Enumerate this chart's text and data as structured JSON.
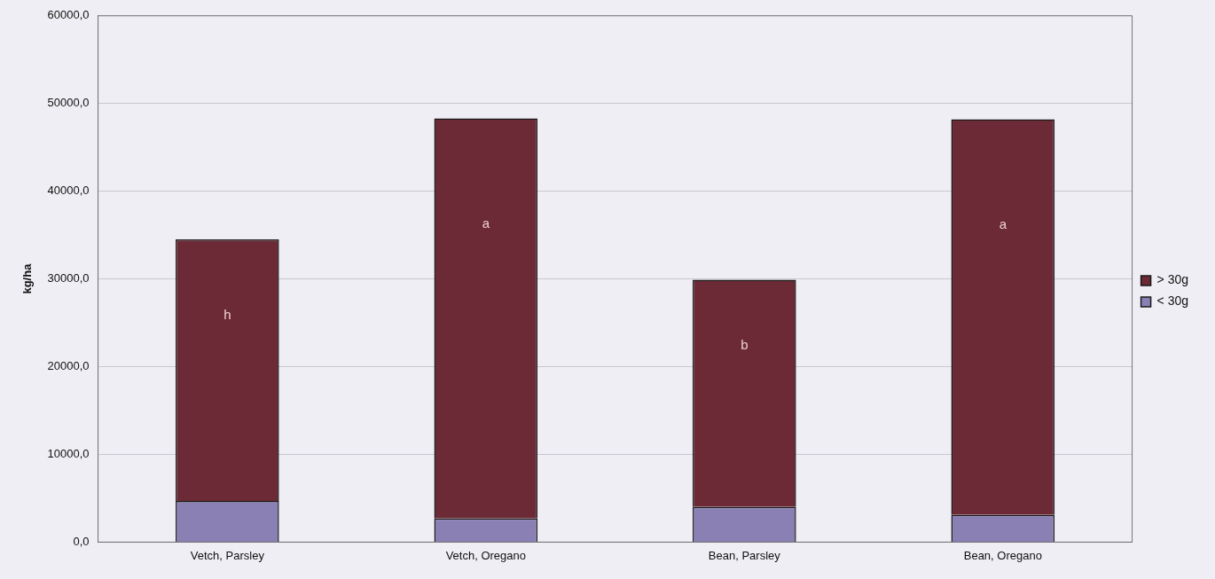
{
  "chart_data": {
    "type": "bar",
    "stacked": true,
    "ylabel": "kg/ha",
    "categories": [
      "Vetch, Parsley",
      "Vetch, Oregano",
      "Bean, Parsley",
      "Bean, Oregano"
    ],
    "series": [
      {
        "name": "< 30g",
        "color": "#8a80b4",
        "values": [
          4700,
          2700,
          4000,
          3100
        ]
      },
      {
        "name": "> 30g",
        "color": "#6b2a35",
        "values": [
          29800,
          45600,
          25900,
          45100
        ]
      }
    ],
    "ylim": [
      0,
      60000
    ],
    "yticks": [
      {
        "value": 0,
        "label": "0,0"
      },
      {
        "value": 10000,
        "label": "10000,0"
      },
      {
        "value": 20000,
        "label": "20000,0"
      },
      {
        "value": 30000,
        "label": "30000,0"
      },
      {
        "value": 40000,
        "label": "40000,0"
      },
      {
        "value": 50000,
        "label": "50000,0"
      },
      {
        "value": 60000,
        "label": "60000,0"
      }
    ],
    "grid": "y",
    "legend": "right",
    "annotations": [
      "h",
      "a",
      "b",
      "a"
    ]
  }
}
